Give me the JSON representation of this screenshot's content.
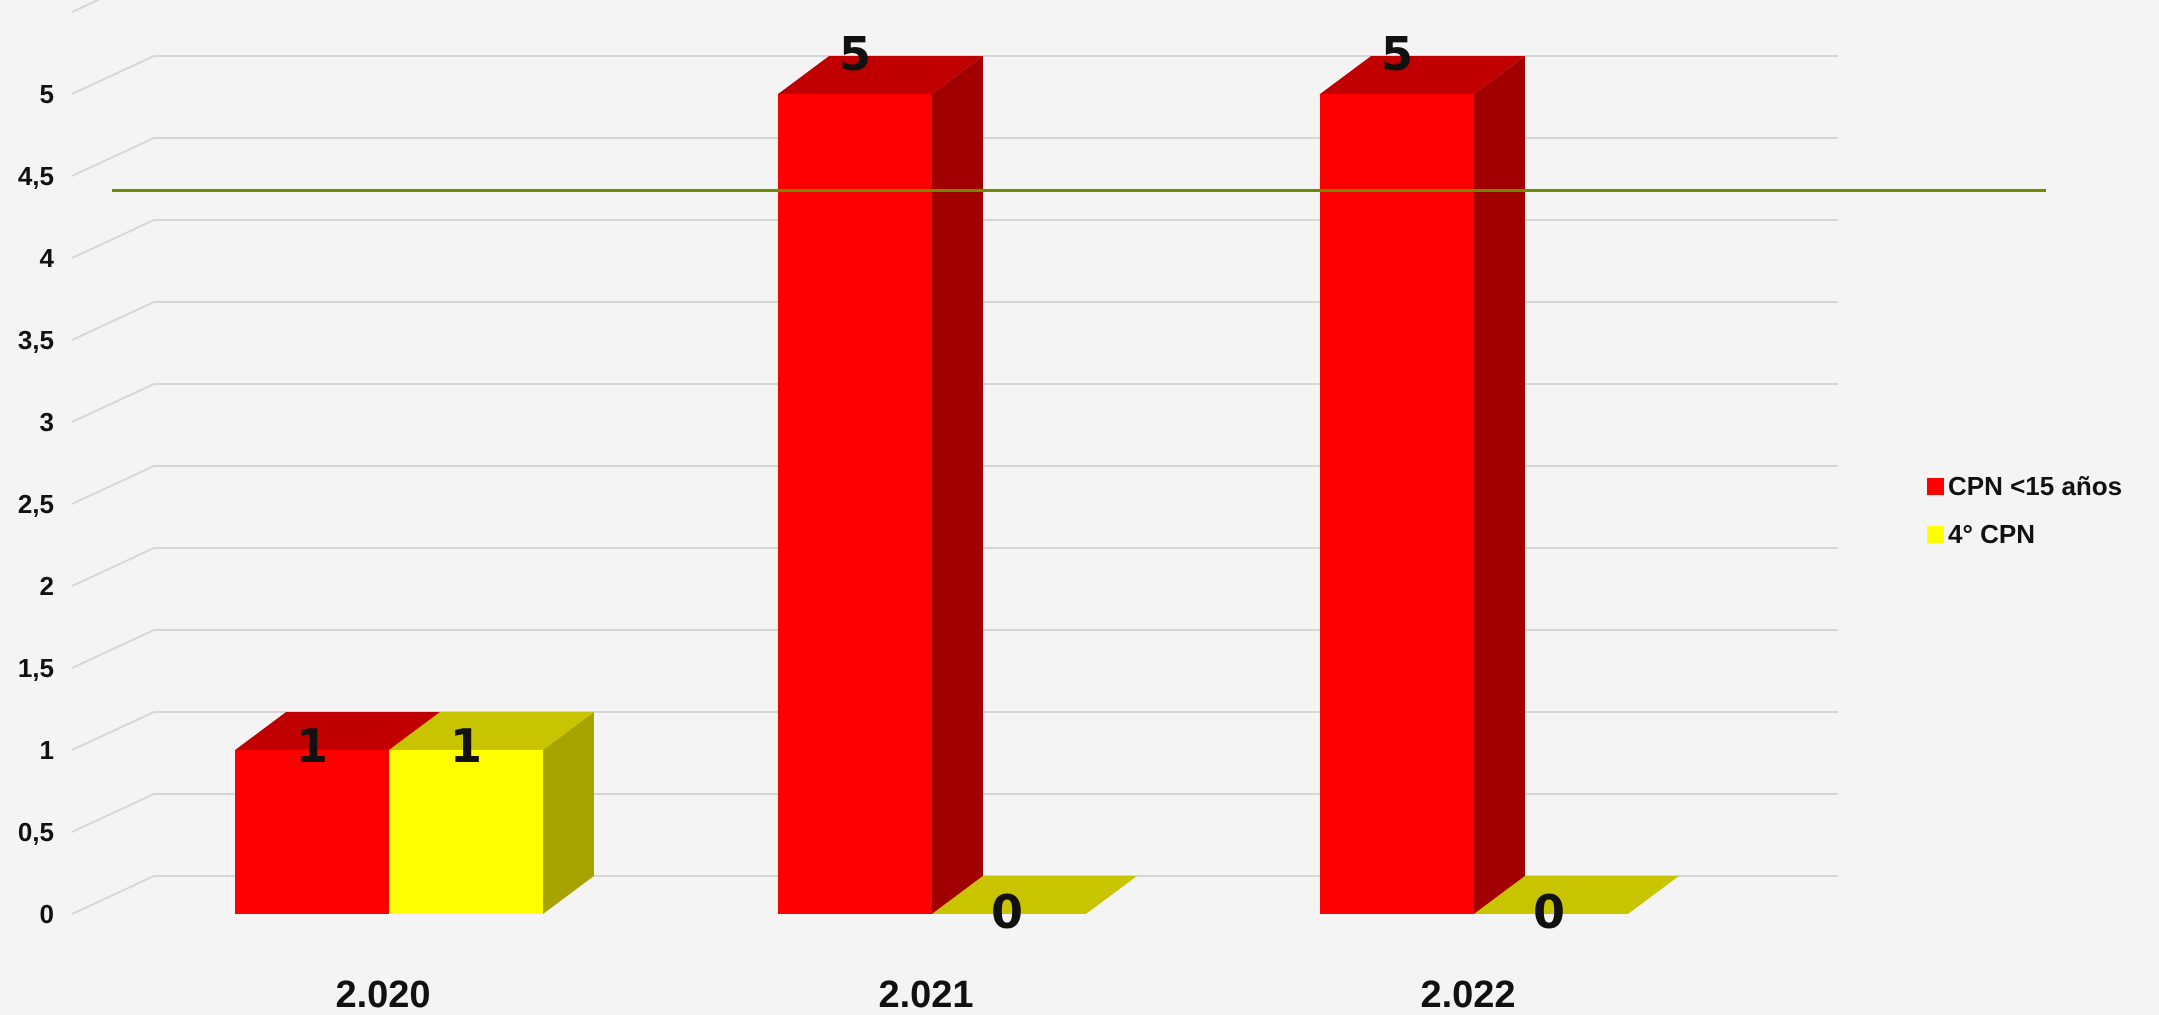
{
  "chart_data": {
    "type": "bar",
    "categories": [
      "2.020",
      "2.021",
      "2.022"
    ],
    "series": [
      {
        "name": "CPN <15 años",
        "values": [
          1,
          5,
          5
        ],
        "labels": [
          "1",
          "5",
          "5"
        ],
        "color": "#ff0000",
        "top_color": "#c00000",
        "side_color": "#a00000"
      },
      {
        "name": "4° CPN",
        "values": [
          1,
          0,
          0
        ],
        "labels": [
          "1",
          "0",
          "0"
        ],
        "color": "#ffff00",
        "top_color": "#c8c400",
        "side_color": "#a7a300"
      }
    ],
    "ylim": [
      0,
      5
    ],
    "yticks": [
      "0",
      "0,5",
      "1",
      "1,5",
      "2",
      "2,5",
      "3",
      "3,5",
      "4",
      "4,5",
      "5"
    ],
    "reference_line": {
      "value": 4.18,
      "color": "#6e8a00"
    },
    "title": "",
    "xlabel": "",
    "ylabel": "",
    "grid": true,
    "legend_position": "right",
    "style": "3d-column"
  }
}
